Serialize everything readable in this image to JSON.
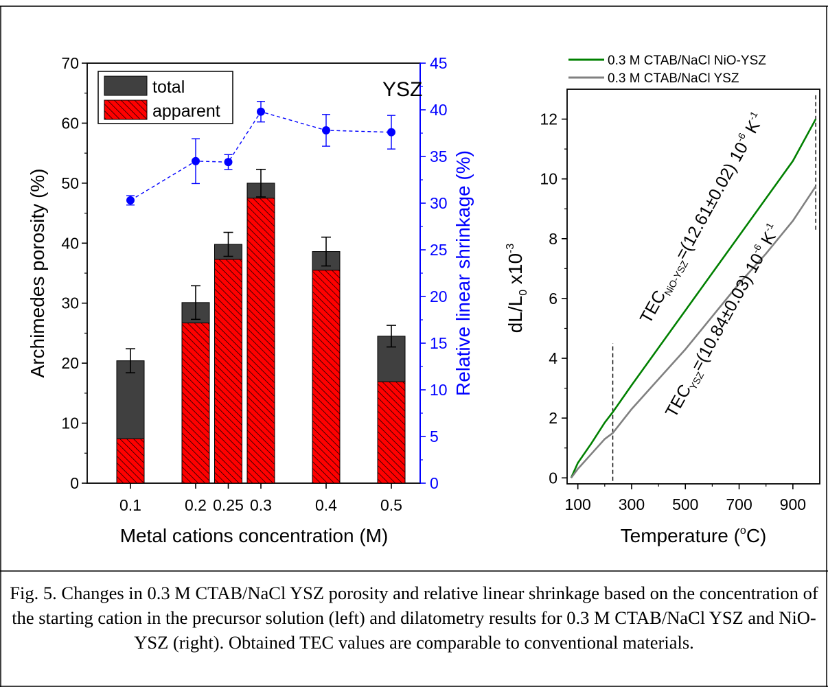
{
  "figure": {
    "caption": "Fig. 5. Changes in 0.3 M CTAB/NaCl YSZ porosity and relative linear shrinkage based on the concentration of the starting cation in the precursor solution (left) and dilatometry results for 0.3 M CTAB/NaCl YSZ and NiO-YSZ (right). Obtained TEC values are comparable to conventional materials."
  },
  "chart_data": [
    {
      "type": "bar",
      "title": "YSZ",
      "xlabel": "Metal cations concentration (M)",
      "ylabel": "Archimedes porosity (%)",
      "y2label": "Relative linear shrinkage (%)",
      "ylim": [
        0,
        70
      ],
      "y2lim": [
        0,
        45
      ],
      "yticks": [
        "0",
        "10",
        "20",
        "30",
        "40",
        "50",
        "60",
        "70"
      ],
      "y2ticks": [
        "0",
        "5",
        "10",
        "15",
        "20",
        "25",
        "30",
        "35",
        "40",
        "45"
      ],
      "x": [
        0.1,
        0.2,
        0.25,
        0.3,
        0.4,
        0.5
      ],
      "categories": [
        "0.1",
        "0.2",
        "0.25",
        "0.3",
        "0.4",
        "0.5"
      ],
      "legend_position": "top-left",
      "series": [
        {
          "name": "total",
          "kind": "bar",
          "color": "#404040",
          "values": [
            20.4,
            30.1,
            39.8,
            50.0,
            38.6,
            24.5
          ],
          "errors": [
            2.0,
            2.8,
            2.0,
            2.3,
            2.4,
            1.8
          ]
        },
        {
          "name": "apparent",
          "kind": "bar",
          "color": "#ff0000",
          "hatch": true,
          "values": [
            7.4,
            26.7,
            37.3,
            47.5,
            35.5,
            16.9
          ]
        },
        {
          "name": "shrinkage",
          "kind": "line",
          "axis": "y2",
          "color": "#0000ff",
          "values": [
            30.3,
            34.5,
            34.4,
            39.8,
            37.8,
            37.6
          ],
          "errors": [
            0.5,
            2.4,
            0.8,
            1.1,
            1.7,
            1.8
          ]
        }
      ]
    },
    {
      "type": "line",
      "xlabel_main": "Temperature (",
      "xlabel_sup": "o",
      "xlabel_end": "C)",
      "ylabel_main": "dL/L",
      "ylabel_sub": "0",
      "ylabel_mid": " x10",
      "ylabel_sup": "-3",
      "xlim": [
        60,
        1000
      ],
      "ylim": [
        -0.2,
        13
      ],
      "xticks": [
        "100",
        "300",
        "500",
        "700",
        "900"
      ],
      "yticks": [
        "0",
        "2",
        "4",
        "6",
        "8",
        "10",
        "12"
      ],
      "legend_position": "top",
      "vlines": [
        230,
        985
      ],
      "series": [
        {
          "name": "0.3 M CTAB/NaCl NiO-YSZ",
          "color": "#008000",
          "x": [
            75,
            100,
            150,
            200,
            230,
            300,
            400,
            500,
            600,
            700,
            800,
            900,
            985
          ],
          "y": [
            0.0,
            0.5,
            1.15,
            1.85,
            2.2,
            3.1,
            4.35,
            5.6,
            6.85,
            8.1,
            9.35,
            10.6,
            12.0
          ]
        },
        {
          "name": "0.3 M CTAB/NaCl YSZ",
          "color": "#808080",
          "x": [
            75,
            100,
            150,
            200,
            230,
            300,
            400,
            500,
            600,
            700,
            800,
            900,
            985
          ],
          "y": [
            0.0,
            0.3,
            0.8,
            1.3,
            1.5,
            2.3,
            3.3,
            4.3,
            5.4,
            6.5,
            7.5,
            8.6,
            9.75
          ]
        }
      ],
      "annotations": [
        {
          "main": "TEC",
          "sub": "NiO-YSZ",
          "main2": "=(12.61±0.02) 10",
          "sup": "-6",
          "main3": " K",
          "sup2": "-1"
        },
        {
          "main": "TEC",
          "sub": "YSZ",
          "main2": "=(10.84±0.03) 10",
          "sup": "-6",
          "main3": " K",
          "sup2": "-1"
        }
      ]
    }
  ]
}
